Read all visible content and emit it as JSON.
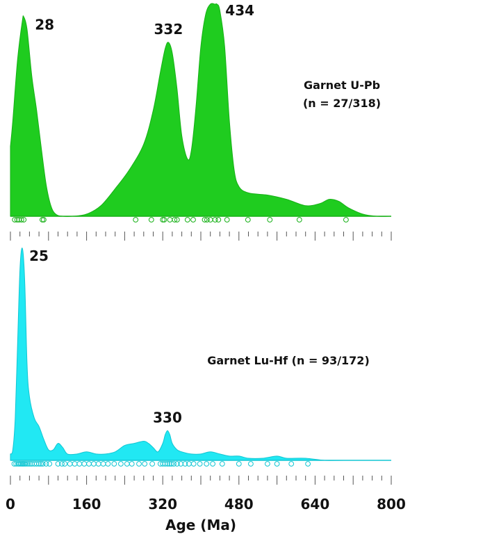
{
  "chart_data": [
    {
      "type": "area",
      "name": "Garnet U-Pb",
      "legend_lines": [
        "Garnet U-Pb",
        "(n = 27/318)"
      ],
      "color": "#1fcc1f",
      "stroke": "#16b016",
      "xlim": [
        0,
        800
      ],
      "density": {
        "x": [
          0,
          5,
          15,
          25,
          28,
          35,
          45,
          55,
          65,
          75,
          85,
          95,
          110,
          130,
          160,
          190,
          220,
          250,
          280,
          300,
          315,
          325,
          332,
          340,
          350,
          360,
          372,
          380,
          390,
          400,
          410,
          420,
          430,
          434,
          440,
          450,
          460,
          470,
          480,
          500,
          540,
          580,
          620,
          650,
          670,
          690,
          710,
          740,
          770,
          800
        ],
        "y": [
          0.33,
          0.45,
          0.74,
          0.92,
          0.94,
          0.88,
          0.66,
          0.5,
          0.32,
          0.15,
          0.05,
          0.01,
          0.0,
          0.0,
          0.01,
          0.05,
          0.13,
          0.22,
          0.34,
          0.5,
          0.68,
          0.79,
          0.82,
          0.77,
          0.6,
          0.38,
          0.27,
          0.31,
          0.52,
          0.8,
          0.95,
          1.0,
          1.0,
          1.0,
          0.97,
          0.8,
          0.45,
          0.22,
          0.14,
          0.11,
          0.1,
          0.08,
          0.05,
          0.06,
          0.08,
          0.07,
          0.04,
          0.01,
          0.0,
          0.0
        ]
      },
      "ages": [
        9,
        14,
        18,
        23,
        28,
        67,
        70,
        263,
        296,
        320,
        323,
        335,
        345,
        350,
        372,
        384,
        408,
        413,
        420,
        430,
        437,
        455,
        499,
        545,
        607,
        705
      ],
      "peaks": [
        {
          "label": "28",
          "age": 28,
          "height": 0.94
        },
        {
          "label": "332",
          "age": 332,
          "height": 0.82
        },
        {
          "label": "434",
          "age": 434,
          "height": 1.0
        }
      ]
    },
    {
      "type": "area",
      "name": "Garnet Lu-Hf",
      "legend_lines": [
        "Garnet Lu-Hf (n = 93/172)"
      ],
      "color": "#21e8f3",
      "stroke": "#10c6d3",
      "xlim": [
        0,
        800
      ],
      "density": {
        "x": [
          0,
          5,
          10,
          15,
          20,
          25,
          30,
          35,
          40,
          50,
          60,
          70,
          80,
          90,
          100,
          110,
          120,
          140,
          160,
          180,
          200,
          220,
          240,
          260,
          280,
          290,
          300,
          310,
          320,
          325,
          330,
          335,
          340,
          350,
          360,
          380,
          400,
          420,
          440,
          460,
          480,
          500,
          530,
          560,
          580,
          620,
          660,
          700,
          750,
          800
        ],
        "y": [
          0.03,
          0.05,
          0.2,
          0.55,
          0.9,
          1.0,
          0.85,
          0.45,
          0.3,
          0.2,
          0.16,
          0.1,
          0.05,
          0.05,
          0.08,
          0.06,
          0.03,
          0.03,
          0.04,
          0.03,
          0.03,
          0.04,
          0.07,
          0.08,
          0.09,
          0.08,
          0.06,
          0.04,
          0.08,
          0.12,
          0.14,
          0.12,
          0.08,
          0.05,
          0.04,
          0.03,
          0.03,
          0.04,
          0.03,
          0.02,
          0.02,
          0.01,
          0.01,
          0.02,
          0.01,
          0.01,
          0.0,
          0.0,
          0.0,
          0.0
        ]
      },
      "ages": [
        8,
        12,
        16,
        19,
        22,
        25,
        27,
        30,
        33,
        37,
        41,
        45,
        50,
        55,
        60,
        64,
        68,
        75,
        82,
        100,
        108,
        114,
        125,
        135,
        145,
        155,
        165,
        175,
        185,
        195,
        205,
        218,
        232,
        245,
        255,
        270,
        282,
        298,
        315,
        320,
        325,
        330,
        334,
        338,
        343,
        350,
        358,
        367,
        375,
        385,
        398,
        412,
        425,
        445,
        480,
        505,
        540,
        560,
        590,
        625
      ],
      "peaks": [
        {
          "label": "25",
          "age": 25,
          "height": 1.0
        },
        {
          "label": "330",
          "age": 330,
          "height": 0.14
        }
      ]
    }
  ],
  "axis": {
    "ticks": [
      0,
      160,
      320,
      480,
      640,
      800
    ],
    "tick_labels": [
      "0",
      "160",
      "320",
      "480",
      "640",
      "800"
    ],
    "minor_step": 20,
    "title": "Age (Ma)"
  }
}
